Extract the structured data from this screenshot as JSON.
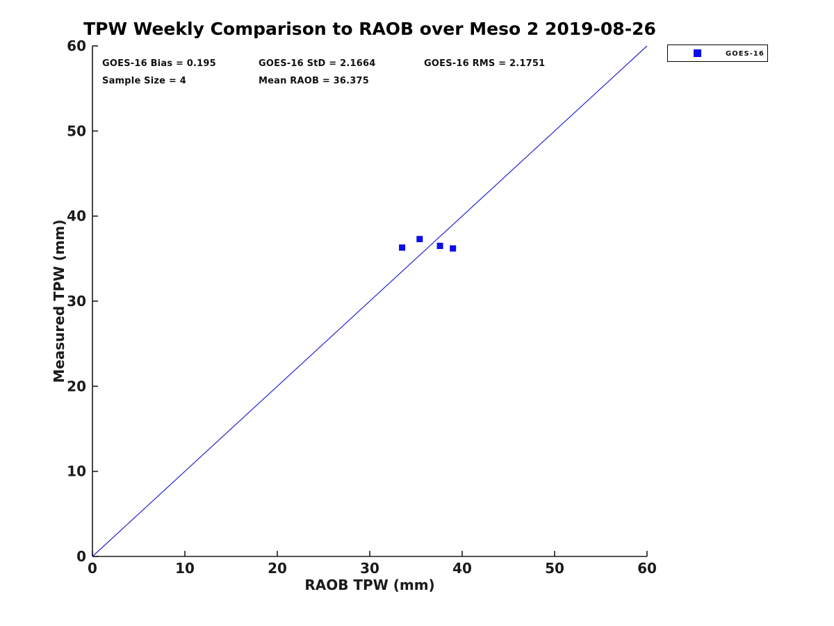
{
  "chart_data": {
    "type": "scatter",
    "title": "TPW Weekly Comparison to RAOB over Meso 2 2019-08-26",
    "xlabel": "RAOB TPW (mm)",
    "ylabel": "Measured TPW (mm)",
    "xlim": [
      0,
      60
    ],
    "ylim": [
      0,
      60
    ],
    "xticks": [
      0,
      10,
      20,
      30,
      40,
      50,
      60
    ],
    "yticks": [
      0,
      10,
      20,
      30,
      40,
      50,
      60
    ],
    "grid": false,
    "legend": {
      "position": "top-right-outside",
      "entries": [
        {
          "label": "GOES-16",
          "marker": "square",
          "color": "#0d0de8"
        }
      ]
    },
    "series": [
      {
        "name": "GOES-16",
        "type": "scatter",
        "marker": "square",
        "marker_size_px": 9,
        "color": "#0d0de8",
        "points": [
          [
            33.5,
            36.3
          ],
          [
            35.4,
            37.3
          ],
          [
            37.6,
            36.5
          ],
          [
            39.0,
            36.2
          ]
        ]
      }
    ],
    "reference_line": {
      "from": [
        0,
        0
      ],
      "to": [
        60,
        60
      ],
      "color": "#2323ce",
      "width": 1.2
    },
    "annotations": [
      {
        "id": "bias",
        "text": "GOES-16 Bias = 0.195"
      },
      {
        "id": "std",
        "text": "GOES-16 StD = 2.1664"
      },
      {
        "id": "rms",
        "text": "GOES-16 RMS = 2.1751"
      },
      {
        "id": "sample_size",
        "text": "Sample Size = 4"
      },
      {
        "id": "mean_raob",
        "text": "Mean RAOB = 36.375"
      }
    ],
    "colors": {
      "marker_blue": "#0d0de8",
      "line_blue": "#2323ce",
      "axis": "#1a1a1a",
      "title_text": "#000000",
      "background": "#ffffff"
    }
  }
}
